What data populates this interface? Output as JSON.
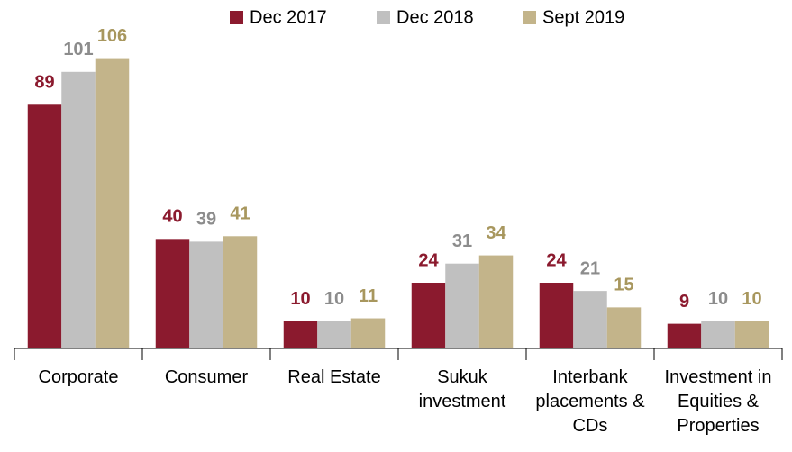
{
  "chart_data": {
    "type": "bar",
    "categories": [
      "Corporate",
      "Consumer",
      "Real Estate",
      "Sukuk investment",
      "Interbank placements & CDs",
      "Investment in Equities & Properties"
    ],
    "series": [
      {
        "name": "Dec 2017",
        "color": "#8b1a2e",
        "values": [
          89,
          40,
          10,
          24,
          24,
          9
        ]
      },
      {
        "name": "Dec 2018",
        "color": "#c0c0c0",
        "values": [
          101,
          39,
          10,
          31,
          21,
          10
        ]
      },
      {
        "name": "Sept 2019",
        "color": "#c3b48a",
        "values": [
          106,
          41,
          11,
          34,
          15,
          10
        ]
      }
    ],
    "label_colors": [
      "#8b1a2e",
      "#8c8c8c",
      "#a8975e"
    ],
    "ylim": [
      0,
      120
    ],
    "legend": "top"
  }
}
